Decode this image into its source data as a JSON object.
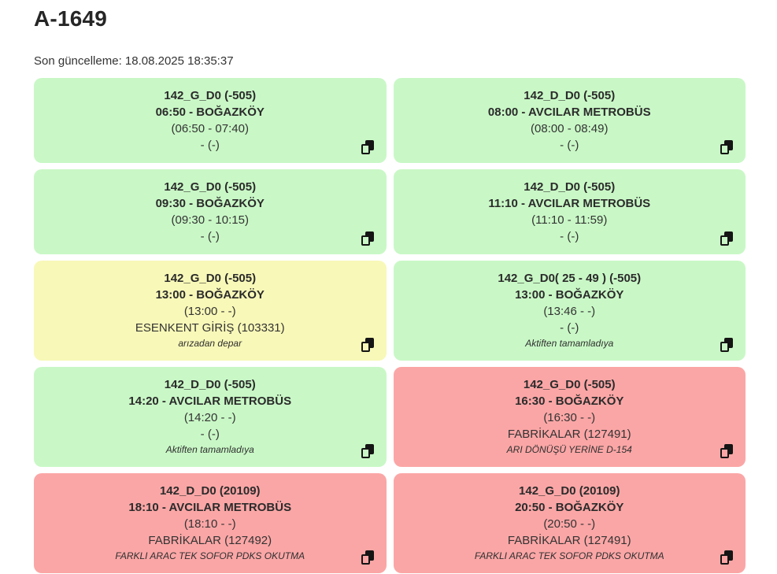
{
  "page": {
    "title": "A-1649",
    "last_update": "Son güncelleme: 18.08.2025 18:35:37"
  },
  "colors": {
    "status_green": "#c9f8c6",
    "status_yellow": "#f8f8b8",
    "status_red": "#fba6a6",
    "text": "#2d2d2d"
  },
  "icons": {
    "copy": "copy-icon"
  },
  "cards": [
    {
      "status": "green",
      "code": "142_G_D0 (-505)",
      "departure": "06:50 - BOĞAZKÖY",
      "times": "(06:50 - 07:40)",
      "location": "- (-)",
      "note": ""
    },
    {
      "status": "green",
      "code": "142_D_D0 (-505)",
      "departure": "08:00 - AVCILAR METROBÜS",
      "times": "(08:00 - 08:49)",
      "location": "- (-)",
      "note": ""
    },
    {
      "status": "green",
      "code": "142_G_D0 (-505)",
      "departure": "09:30 - BOĞAZKÖY",
      "times": "(09:30 - 10:15)",
      "location": "- (-)",
      "note": ""
    },
    {
      "status": "green",
      "code": "142_D_D0 (-505)",
      "departure": "11:10 - AVCILAR METROBÜS",
      "times": "(11:10 - 11:59)",
      "location": "- (-)",
      "note": ""
    },
    {
      "status": "yellow",
      "code": "142_G_D0 (-505)",
      "departure": "13:00 - BOĞAZKÖY",
      "times": "(13:00 - -)",
      "location": "ESENKENT GİRİŞ (103331)",
      "note": "arızadan depar"
    },
    {
      "status": "green",
      "code": "142_G_D0( 25 - 49 ) (-505)",
      "departure": "13:00 - BOĞAZKÖY",
      "times": "(13:46 - -)",
      "location": "- (-)",
      "note": "Aktiften tamamladıya"
    },
    {
      "status": "green",
      "code": "142_D_D0 (-505)",
      "departure": "14:20 - AVCILAR METROBÜS",
      "times": "(14:20 - -)",
      "location": "- (-)",
      "note": "Aktiften tamamladıya"
    },
    {
      "status": "red",
      "code": "142_G_D0 (-505)",
      "departure": "16:30 - BOĞAZKÖY",
      "times": "(16:30 - -)",
      "location": "FABRİKALAR (127491)",
      "note": "ARI DÖNÜŞÜ YERİNE D-154"
    },
    {
      "status": "red",
      "code": "142_D_D0 (20109)",
      "departure": "18:10 - AVCILAR METROBÜS",
      "times": "(18:10 - -)",
      "location": "FABRİKALAR (127492)",
      "note": "FARKLI ARAC TEK SOFOR PDKS OKUTMA"
    },
    {
      "status": "red",
      "code": "142_G_D0 (20109)",
      "departure": "20:50 - BOĞAZKÖY",
      "times": "(20:50 - -)",
      "location": "FABRİKALAR (127491)",
      "note": "FARKLI ARAC TEK SOFOR PDKS OKUTMA"
    }
  ]
}
